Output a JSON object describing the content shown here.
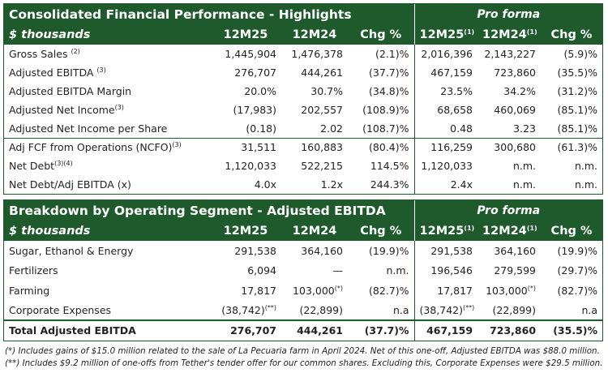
{
  "table1": {
    "title": "Consolidated Financial Performance - Highlights",
    "pro_forma": "Pro forma",
    "header": [
      "$ thousands",
      "12M25",
      "12M24",
      "Chg %",
      {
        "text": "12M25",
        "sup": "(1)"
      },
      {
        "text": "12M24",
        "sup": "(1)"
      },
      "Chg %"
    ],
    "rows": [
      [
        {
          "text": "Gross Sales ",
          "sup": "(2)"
        },
        "1,445,904",
        "1,476,378",
        "(2.1)%",
        "2,016,396",
        "2,143,227",
        "(5.9)%"
      ],
      [
        {
          "text": "Adjusted EBITDA ",
          "sup": "(3)"
        },
        "276,707",
        "444,261",
        "(37.7)%",
        "467,159",
        "723,860",
        "(35.5)%"
      ],
      [
        "Adjusted EBITDA Margin",
        "20.0%",
        "30.7%",
        "(34.8)%",
        "23.5%",
        "34.2%",
        "(31.2)%"
      ],
      [
        {
          "text": "Adjusted Net Income",
          "sup": "(3)"
        },
        "(17,983)",
        "202,557",
        "(108.9)%",
        "68,658",
        "460,069",
        "(85.1)%"
      ],
      [
        "Adjusted Net Income per Share",
        "(0.18)",
        "2.02",
        "(108.7)%",
        "0.48",
        "3.23",
        "(85.1)%"
      ],
      [
        {
          "text": "Adj FCF from Operations (NCFO)",
          "sup": "(3)"
        },
        "31,511",
        "160,883",
        "(80.4)%",
        "116,259",
        "300,680",
        "(61.3)%"
      ],
      [
        {
          "text": "Net Debt",
          "sup": "(3)(4)"
        },
        "1,120,033",
        "522,215",
        "114.5%",
        "1,120,033",
        "n.m.",
        "n.m."
      ],
      [
        "Net Debt/Adj EBITDA (x)",
        "4.0x",
        "1.2x",
        "244.3%",
        "2.4x",
        "n.m.",
        "n.m."
      ]
    ]
  },
  "table2": {
    "title": "Breakdown by Operating Segment - Adjusted EBITDA",
    "pro_forma": "Pro forma",
    "header": [
      "$ thousands",
      "12M25",
      "12M24",
      "Chg %",
      {
        "text": "12M25",
        "sup": "(1)"
      },
      {
        "text": "12M24",
        "sup": "(1)"
      },
      "Chg %"
    ],
    "rows": [
      [
        "Sugar, Ethanol & Energy",
        "291,538",
        "364,160",
        "(19.9)%",
        "291,538",
        "364,160",
        "(19.9)%"
      ],
      [
        "Fertilizers",
        "6,094",
        "—",
        "n.m.",
        "196,546",
        "279,599",
        "(29.7)%"
      ],
      [
        "Farming",
        "17,817",
        {
          "text": "103,000",
          "sup": "(*)"
        },
        "(82.7)%",
        "17,817",
        {
          "text": "103,000",
          "sup": "(*)"
        },
        "(82.7)%"
      ],
      [
        "Corporate Expenses",
        {
          "text": "(38,742)",
          "sup": "(**)"
        },
        "(22,899)",
        "n.a",
        {
          "text": "(38,742)",
          "sup": "(**)"
        },
        "(22,899)",
        "n.a"
      ],
      [
        "Total Adjusted EBITDA",
        "276,707",
        "444,261",
        "(37.7)%",
        "467,159",
        "723,860",
        "(35.5)%"
      ]
    ]
  },
  "footnotes": [
    "(*) Includes gains of $15.0 million related to the sale of La Pecuaria farm in April 2024. Net of this one-off, Adjusted EBITDA was $88.0 million.",
    "(**) Includes $9.2 million of one-offs from Tether's tender offer for our common shares. Excluding this, Corporate Expenses were $29.5 million."
  ]
}
